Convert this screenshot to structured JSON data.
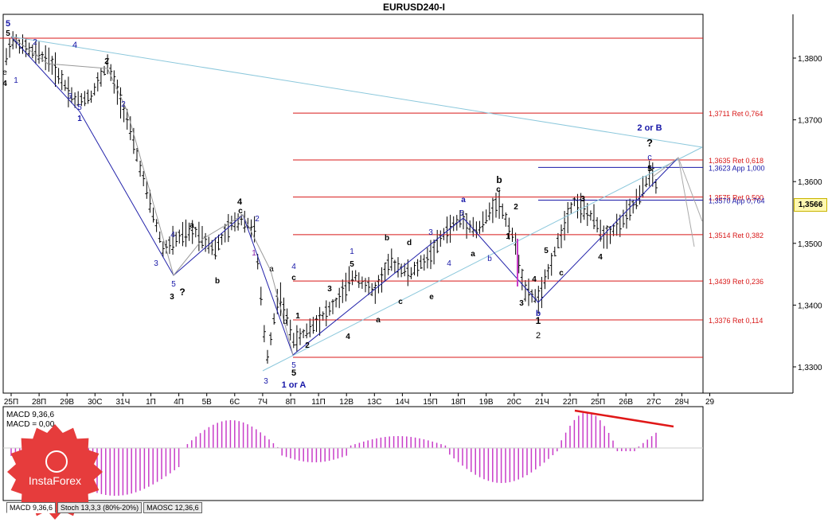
{
  "window": {
    "title": "EURUSD240-I"
  },
  "chart": {
    "current_price": "1,3566",
    "price_axis": [
      {
        "label": "1,3800",
        "value": 1.38
      },
      {
        "label": "1,3700",
        "value": 1.37
      },
      {
        "label": "1,3600",
        "value": 1.36
      },
      {
        "label": "1,3500",
        "value": 1.35
      },
      {
        "label": "1,3400",
        "value": 1.34
      },
      {
        "label": "1,3300",
        "value": 1.33
      }
    ],
    "time_axis": [
      "25П",
      "28П",
      "29В",
      "30С",
      "31Ч",
      "1П",
      "4П",
      "5В",
      "6С",
      "7Ч",
      "8П",
      "11П",
      "12В",
      "13С",
      "14Ч",
      "15П",
      "18П",
      "19В",
      "20С",
      "21Ч",
      "22П",
      "25П",
      "26В",
      "27С",
      "28Ч",
      "29"
    ],
    "fib_levels": [
      {
        "label": "1,3711 Ret 0,764",
        "value": 1.3711,
        "color": "#d81818"
      },
      {
        "label": "1,3635 Ret 0,618",
        "value": 1.3635,
        "color": "#d81818"
      },
      {
        "label": "1,3623 App 1,000",
        "value": 1.3623,
        "color": "#1818a8"
      },
      {
        "label": "1,3575 Ret 0,500",
        "value": 1.3575,
        "color": "#d81818"
      },
      {
        "label": "1,3570 App 0,764",
        "value": 1.357,
        "color": "#1818a8"
      },
      {
        "label": "1,3514 Ret 0,382",
        "value": 1.3514,
        "color": "#d81818"
      },
      {
        "label": "1,3439 Ret 0,236",
        "value": 1.3439,
        "color": "#d81818"
      },
      {
        "label": "1,3376 Ret 0,114",
        "value": 1.3376,
        "color": "#d81818"
      }
    ],
    "wave_labels": [
      {
        "text": "5",
        "color": "#1818a8"
      },
      {
        "text": "5",
        "color": "#000000"
      },
      {
        "text": "e",
        "color": "#000000"
      },
      {
        "text": "4",
        "color": "#000000"
      },
      {
        "text": "1",
        "color": "#1818a8"
      },
      {
        "text": "2",
        "color": "#1818a8"
      },
      {
        "text": "4",
        "color": "#1818a8"
      },
      {
        "text": "3",
        "color": "#1818a8"
      },
      {
        "text": "5",
        "color": "#1818a8"
      },
      {
        "text": "1",
        "color": "#1818a8"
      },
      {
        "text": "2",
        "color": "#000000"
      },
      {
        "text": "2",
        "color": "#1818a8"
      },
      {
        "text": "a",
        "color": "#000000"
      },
      {
        "text": "4",
        "color": "#1818a8"
      },
      {
        "text": "3",
        "color": "#1818a8"
      },
      {
        "text": "5",
        "color": "#1818a8"
      },
      {
        "text": "3",
        "color": "#000000"
      },
      {
        "text": "?",
        "color": "#000000"
      },
      {
        "text": "b",
        "color": "#000000"
      },
      {
        "text": "4",
        "color": "#000000"
      },
      {
        "text": "c",
        "color": "#000000"
      },
      {
        "text": "2",
        "color": "#1818a8"
      },
      {
        "text": "1",
        "color": "#8a18a8"
      },
      {
        "text": "a",
        "color": "#000000"
      },
      {
        "text": "b",
        "color": "#000000"
      },
      {
        "text": "3",
        "color": "#1818a8"
      },
      {
        "text": "5",
        "color": "#1818a8"
      },
      {
        "text": "5",
        "color": "#000000"
      },
      {
        "text": "1 or A",
        "color": "#1818a8"
      },
      {
        "text": "4",
        "color": "#1818a8"
      },
      {
        "text": "c",
        "color": "#000000"
      },
      {
        "text": "1",
        "color": "#000000"
      },
      {
        "text": "2",
        "color": "#000000"
      },
      {
        "text": "3",
        "color": "#000000"
      },
      {
        "text": "4",
        "color": "#000000"
      },
      {
        "text": "1",
        "color": "#1818a8"
      },
      {
        "text": "5",
        "color": "#000000"
      },
      {
        "text": "a",
        "color": "#000000"
      },
      {
        "text": "b",
        "color": "#000000"
      },
      {
        "text": "c",
        "color": "#000000"
      },
      {
        "text": "d",
        "color": "#000000"
      },
      {
        "text": "e",
        "color": "#000000"
      },
      {
        "text": "3",
        "color": "#1818a8"
      },
      {
        "text": "4",
        "color": "#1818a8"
      },
      {
        "text": "5",
        "color": "#1818a8"
      },
      {
        "text": "a",
        "color": "#1818a8"
      },
      {
        "text": "a",
        "color": "#000000"
      },
      {
        "text": "b",
        "color": "#1818a8"
      },
      {
        "text": "1",
        "color": "#000000"
      },
      {
        "text": "b",
        "color": "#000000"
      },
      {
        "text": "c",
        "color": "#000000"
      },
      {
        "text": "2",
        "color": "#000000"
      },
      {
        "text": "3",
        "color": "#000000"
      },
      {
        "text": "4",
        "color": "#000000"
      },
      {
        "text": "5",
        "color": "#000000"
      },
      {
        "text": "c",
        "color": "#000000"
      },
      {
        "text": "b",
        "color": "#1818a8"
      },
      {
        "text": "1",
        "color": "#000000"
      },
      {
        "text": "2",
        "color": "#000000"
      },
      {
        "text": "3",
        "color": "#000000"
      },
      {
        "text": "4",
        "color": "#000000"
      },
      {
        "text": "5",
        "color": "#000000"
      },
      {
        "text": "2 or B",
        "color": "#1818a8"
      },
      {
        "text": "?",
        "color": "#000000"
      },
      {
        "text": "c",
        "color": "#1818a8"
      },
      {
        "text": "5",
        "color": "#000000"
      }
    ]
  },
  "indicator": {
    "label1": "MACD 9,36,6",
    "label2": "MACD = 0,00"
  },
  "tabs": [
    {
      "label": "MACD 9,36,6"
    },
    {
      "label": "Stoch 13,3,3 (80%-20%)"
    },
    {
      "label": "MAOSC 12,36,6"
    }
  ],
  "logo": {
    "text": "InstaForex"
  },
  "colors": {
    "bull_bear_bars": "#000000",
    "retracement": "#d81818",
    "approximation": "#1818a8",
    "trendline": "#8cc8dc",
    "histogram": "#c83cc8",
    "brand": "#e63c3c"
  }
}
